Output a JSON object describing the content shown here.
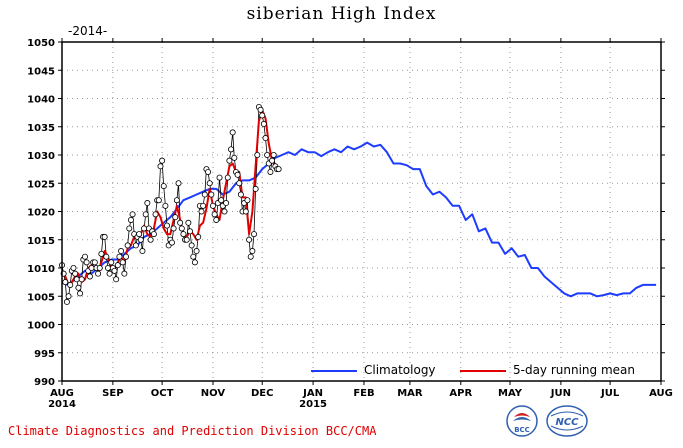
{
  "chart_data": {
    "type": "line",
    "title": "siberian High Index",
    "year_label": "-2014-",
    "xlabel": "",
    "ylabel": "",
    "ylim": [
      990,
      1050
    ],
    "yticks": [
      990,
      995,
      1000,
      1005,
      1010,
      1015,
      1020,
      1025,
      1030,
      1035,
      1040,
      1045,
      1050
    ],
    "xlim": [
      0,
      365
    ],
    "month_ticks": [
      {
        "day": 0,
        "label": "AUG",
        "sub": "2014"
      },
      {
        "day": 31,
        "label": "SEP",
        "sub": ""
      },
      {
        "day": 61,
        "label": "OCT",
        "sub": ""
      },
      {
        "day": 92,
        "label": "NOV",
        "sub": ""
      },
      {
        "day": 122,
        "label": "DEC",
        "sub": ""
      },
      {
        "day": 153,
        "label": "JAN",
        "sub": "2015"
      },
      {
        "day": 184,
        "label": "FEB",
        "sub": ""
      },
      {
        "day": 212,
        "label": "MAR",
        "sub": ""
      },
      {
        "day": 243,
        "label": "APR",
        "sub": ""
      },
      {
        "day": 273,
        "label": "MAY",
        "sub": ""
      },
      {
        "day": 304,
        "label": "JUN",
        "sub": ""
      },
      {
        "day": 334,
        "label": "JUL",
        "sub": ""
      },
      {
        "day": 365,
        "label": "AUG",
        "sub": ""
      }
    ],
    "legend": {
      "position": "bottom-right",
      "climatology": "Climatology",
      "running_mean": "5-day running mean"
    },
    "colors": {
      "climatology": "#1e3cff",
      "running_mean": "#e00000",
      "daily": "#000000"
    },
    "series": [
      {
        "name": "Climatology",
        "x": [
          2,
          6,
          10,
          14,
          18,
          22,
          26,
          30,
          34,
          38,
          42,
          46,
          50,
          54,
          58,
          62,
          66,
          70,
          74,
          78,
          82,
          86,
          90,
          94,
          98,
          102,
          106,
          110,
          114,
          118,
          122,
          126,
          130,
          134,
          138,
          142,
          146,
          150,
          154,
          158,
          162,
          166,
          170,
          174,
          178,
          182,
          186,
          190,
          194,
          198,
          202,
          206,
          210,
          214,
          218,
          222,
          226,
          230,
          234,
          238,
          242,
          246,
          250,
          254,
          258,
          262,
          266,
          270,
          274,
          278,
          282,
          286,
          290,
          294,
          298,
          302,
          306,
          310,
          314,
          318,
          322,
          326,
          330,
          334,
          338,
          342,
          346,
          350,
          354,
          358,
          362
        ],
        "values": [
          1007,
          1007.5,
          1008.5,
          1009.5,
          1009,
          1010,
          1011,
          1011.5,
          1011.5,
          1012.5,
          1013.5,
          1014,
          1015.5,
          1016,
          1017,
          1018,
          1019,
          1020.5,
          1022,
          1022.5,
          1023,
          1023.5,
          1024,
          1024,
          1023,
          1023.5,
          1025,
          1025.5,
          1025.5,
          1026,
          1027.5,
          1028.5,
          1029.5,
          1030,
          1030.5,
          1030,
          1031,
          1030.5,
          1030.5,
          1029.8,
          1030.5,
          1031,
          1030.5,
          1031.5,
          1031,
          1031.5,
          1032.2,
          1031.5,
          1031.8,
          1030.5,
          1028.5,
          1028.5,
          1028.2,
          1027.5,
          1027.5,
          1024.5,
          1023,
          1023.5,
          1022.5,
          1021,
          1021,
          1018.5,
          1019.5,
          1016.5,
          1017,
          1014.5,
          1014.5,
          1012.5,
          1013.5,
          1012,
          1012.3,
          1010,
          1010,
          1008.5,
          1007.5,
          1006.5,
          1005.5,
          1005,
          1005.5,
          1005.5,
          1005.5,
          1005,
          1005.2,
          1005.5,
          1005.2,
          1005.5,
          1005.5,
          1006.5,
          1007,
          1007,
          1007
        ]
      },
      {
        "name": "5-day running mean",
        "x": [
          0,
          2,
          4,
          6,
          8,
          10,
          12,
          14,
          16,
          18,
          20,
          22,
          24,
          26,
          28,
          30,
          32,
          34,
          36,
          38,
          40,
          42,
          44,
          46,
          48,
          50,
          52,
          54,
          56,
          58,
          60,
          62,
          64,
          66,
          68,
          70,
          72,
          74,
          76,
          78,
          80,
          82,
          84,
          86,
          88,
          90,
          92,
          94,
          96,
          98,
          100,
          102,
          104,
          106,
          108,
          110,
          112,
          114,
          116,
          118,
          120,
          122,
          124,
          126,
          128,
          130,
          132
        ],
        "values": [
          1009.5,
          1008.5,
          1007,
          1007.5,
          1008.5,
          1009,
          1007.5,
          1008,
          1010,
          1010.5,
          1010,
          1009.5,
          1011,
          1013,
          1012,
          1010,
          1009.5,
          1011,
          1012,
          1011,
          1013.5,
          1014,
          1015.5,
          1016,
          1016,
          1017.5,
          1016,
          1015.5,
          1017,
          1020,
          1019,
          1017,
          1016,
          1016,
          1018.5,
          1021,
          1018.5,
          1016,
          1015.5,
          1016.5,
          1016,
          1015,
          1017.5,
          1018,
          1020.5,
          1024,
          1021,
          1019.5,
          1018.5,
          1022,
          1025,
          1028,
          1028.5,
          1027,
          1027,
          1022.5,
          1022.5,
          1016,
          1020,
          1028,
          1036,
          1038,
          1036.5,
          1032,
          1029,
          1028,
          1027.5
        ]
      },
      {
        "name": "Daily",
        "x": [
          0,
          1,
          2,
          3,
          4,
          5,
          6,
          7,
          8,
          9,
          10,
          11,
          12,
          13,
          14,
          15,
          16,
          17,
          18,
          19,
          20,
          21,
          22,
          23,
          24,
          25,
          26,
          27,
          28,
          29,
          30,
          31,
          32,
          33,
          34,
          35,
          36,
          37,
          38,
          39,
          40,
          41,
          42,
          43,
          44,
          45,
          46,
          47,
          48,
          49,
          50,
          51,
          52,
          53,
          54,
          55,
          56,
          57,
          58,
          59,
          60,
          61,
          62,
          63,
          64,
          65,
          66,
          67,
          68,
          69,
          70,
          71,
          72,
          73,
          74,
          75,
          76,
          77,
          78,
          79,
          80,
          81,
          82,
          83,
          84,
          85,
          86,
          87,
          88,
          89,
          90,
          91,
          92,
          93,
          94,
          95,
          96,
          97,
          98,
          99,
          100,
          101,
          102,
          103,
          104,
          105,
          106,
          107,
          108,
          109,
          110,
          111,
          112,
          113,
          114,
          115,
          116,
          117,
          118,
          119,
          120,
          121,
          122,
          123,
          124,
          125,
          126,
          127,
          128,
          129,
          130,
          131,
          132
        ],
        "values": [
          1010.5,
          1009,
          1007.5,
          1004,
          1005,
          1007,
          1009.5,
          1010,
          1009,
          1008,
          1006.5,
          1005.5,
          1008,
          1011.5,
          1012,
          1011,
          1009.5,
          1008.5,
          1010,
          1011,
          1011,
          1010,
          1009,
          1010,
          1012.5,
          1015.5,
          1015.5,
          1012,
          1010,
          1009,
          1011,
          1010,
          1009.5,
          1008,
          1010.5,
          1012,
          1013,
          1011,
          1009,
          1012,
          1014,
          1017,
          1018.5,
          1019.5,
          1016,
          1014,
          1015.5,
          1016,
          1015,
          1013,
          1017,
          1019.5,
          1021.5,
          1017,
          1015,
          1016.5,
          1016,
          1019.5,
          1022,
          1022,
          1028,
          1029,
          1024.5,
          1021,
          1017.5,
          1014,
          1015,
          1014.5,
          1017,
          1019,
          1022,
          1025,
          1018,
          1017,
          1016,
          1015,
          1015,
          1018,
          1016.5,
          1014,
          1012,
          1011,
          1013,
          1015.5,
          1021,
          1020,
          1021,
          1023,
          1027.5,
          1027,
          1025,
          1023,
          1021,
          1019.5,
          1018.5,
          1021.5,
          1026,
          1022,
          1021,
          1020,
          1021.5,
          1026,
          1029,
          1031,
          1034,
          1029.5,
          1027,
          1026.5,
          1025,
          1023,
          1020,
          1021.5,
          1020,
          1022,
          1015,
          1012,
          1013,
          1016,
          1024,
          1030,
          1038.5,
          1038,
          1037,
          1035.5,
          1033,
          1030,
          1028.5,
          1027,
          1029,
          1030,
          1028,
          1027.5,
          1027.5
        ]
      }
    ]
  },
  "footer": {
    "text": "Climate Diagnostics and Prediction Division  BCC/CMA"
  },
  "logos": {
    "bcc": "BCC",
    "ncc": "NCC"
  }
}
